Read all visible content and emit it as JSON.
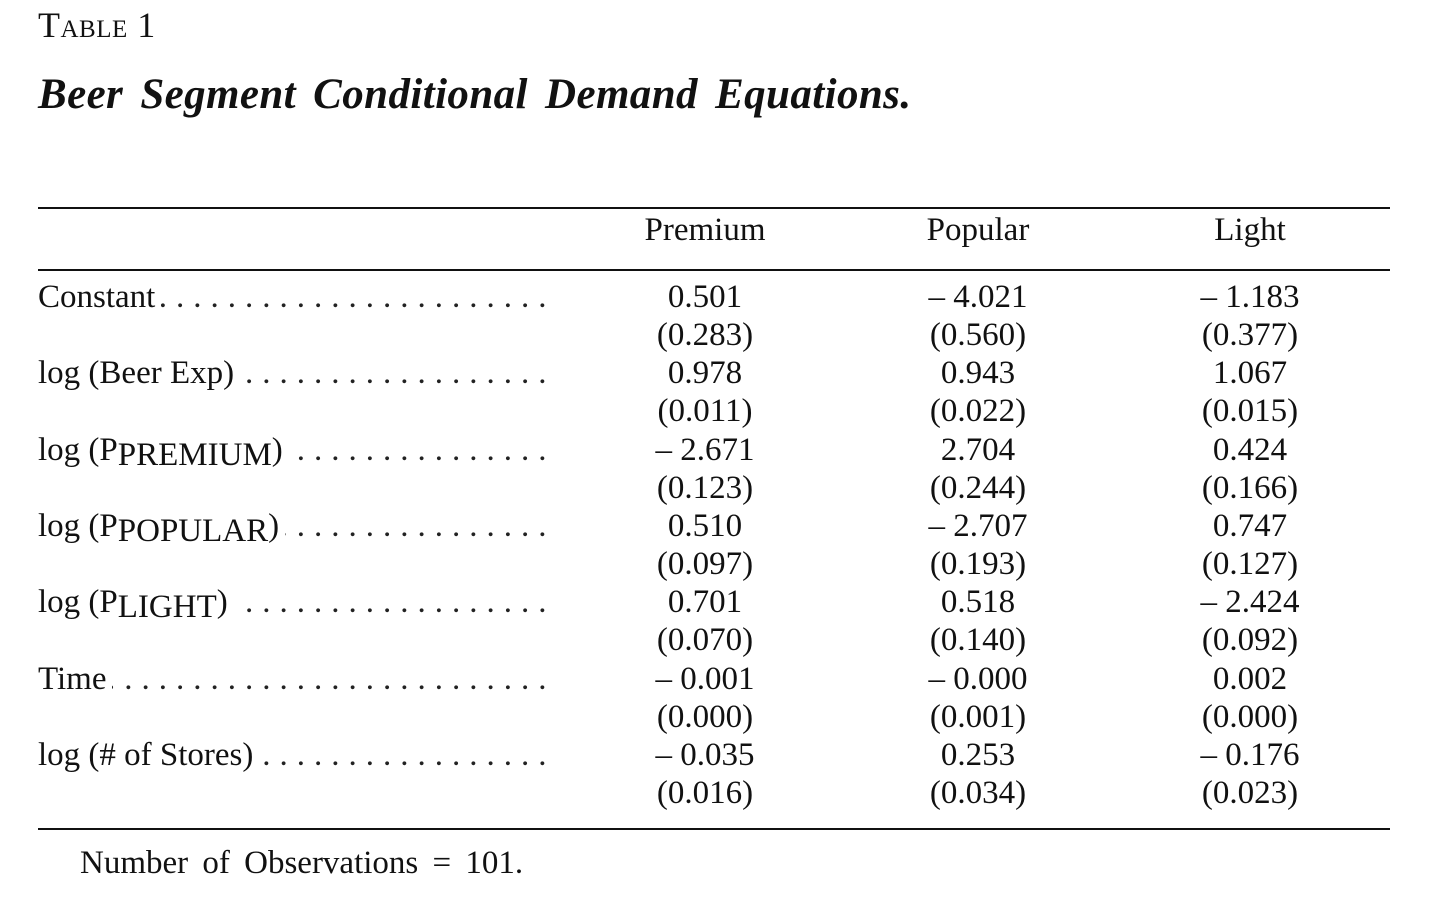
{
  "table": {
    "label": "Table 1",
    "title": "Beer Segment Conditional Demand Equations."
  },
  "columns": [
    "Premium",
    "Popular",
    "Light"
  ],
  "rows": [
    {
      "label": "Constant",
      "label_sub": "",
      "label_after": "",
      "values": [
        {
          "coef": "0.501",
          "se": "(0.283)"
        },
        {
          "coef": "– 4.021",
          "se": "(0.560)"
        },
        {
          "coef": "– 1.183",
          "se": "(0.377)"
        }
      ]
    },
    {
      "label": "log (Beer Exp)",
      "label_sub": "",
      "label_after": "",
      "values": [
        {
          "coef": "0.978",
          "se": "(0.011)"
        },
        {
          "coef": "0.943",
          "se": "(0.022)"
        },
        {
          "coef": "1.067",
          "se": "(0.015)"
        }
      ]
    },
    {
      "label": "log (P",
      "label_sub": "PREMIUM",
      "label_after": ")",
      "values": [
        {
          "coef": "– 2.671",
          "se": "(0.123)"
        },
        {
          "coef": "2.704",
          "se": "(0.244)"
        },
        {
          "coef": "0.424",
          "se": "(0.166)"
        }
      ]
    },
    {
      "label": "log (P",
      "label_sub": "POPULAR",
      "label_after": ")",
      "values": [
        {
          "coef": "0.510",
          "se": "(0.097)"
        },
        {
          "coef": "– 2.707",
          "se": "(0.193)"
        },
        {
          "coef": "0.747",
          "se": "(0.127)"
        }
      ]
    },
    {
      "label": "log (P",
      "label_sub": "LIGHT",
      "label_after": ")",
      "values": [
        {
          "coef": "0.701",
          "se": "(0.070)"
        },
        {
          "coef": "0.518",
          "se": "(0.140)"
        },
        {
          "coef": "– 2.424",
          "se": "(0.092)"
        }
      ]
    },
    {
      "label": "Time",
      "label_sub": "",
      "label_after": "",
      "values": [
        {
          "coef": "– 0.001",
          "se": "(0.000)"
        },
        {
          "coef": "– 0.000",
          "se": "(0.001)"
        },
        {
          "coef": "0.002",
          "se": "(0.000)"
        }
      ]
    },
    {
      "label": "log (# of Stores)",
      "label_sub": "",
      "label_after": "",
      "values": [
        {
          "coef": "– 0.035",
          "se": "(0.016)"
        },
        {
          "coef": "0.253",
          "se": "(0.034)"
        },
        {
          "coef": "– 0.176",
          "se": "(0.023)"
        }
      ]
    }
  ],
  "note": "Number of Observations = 101."
}
